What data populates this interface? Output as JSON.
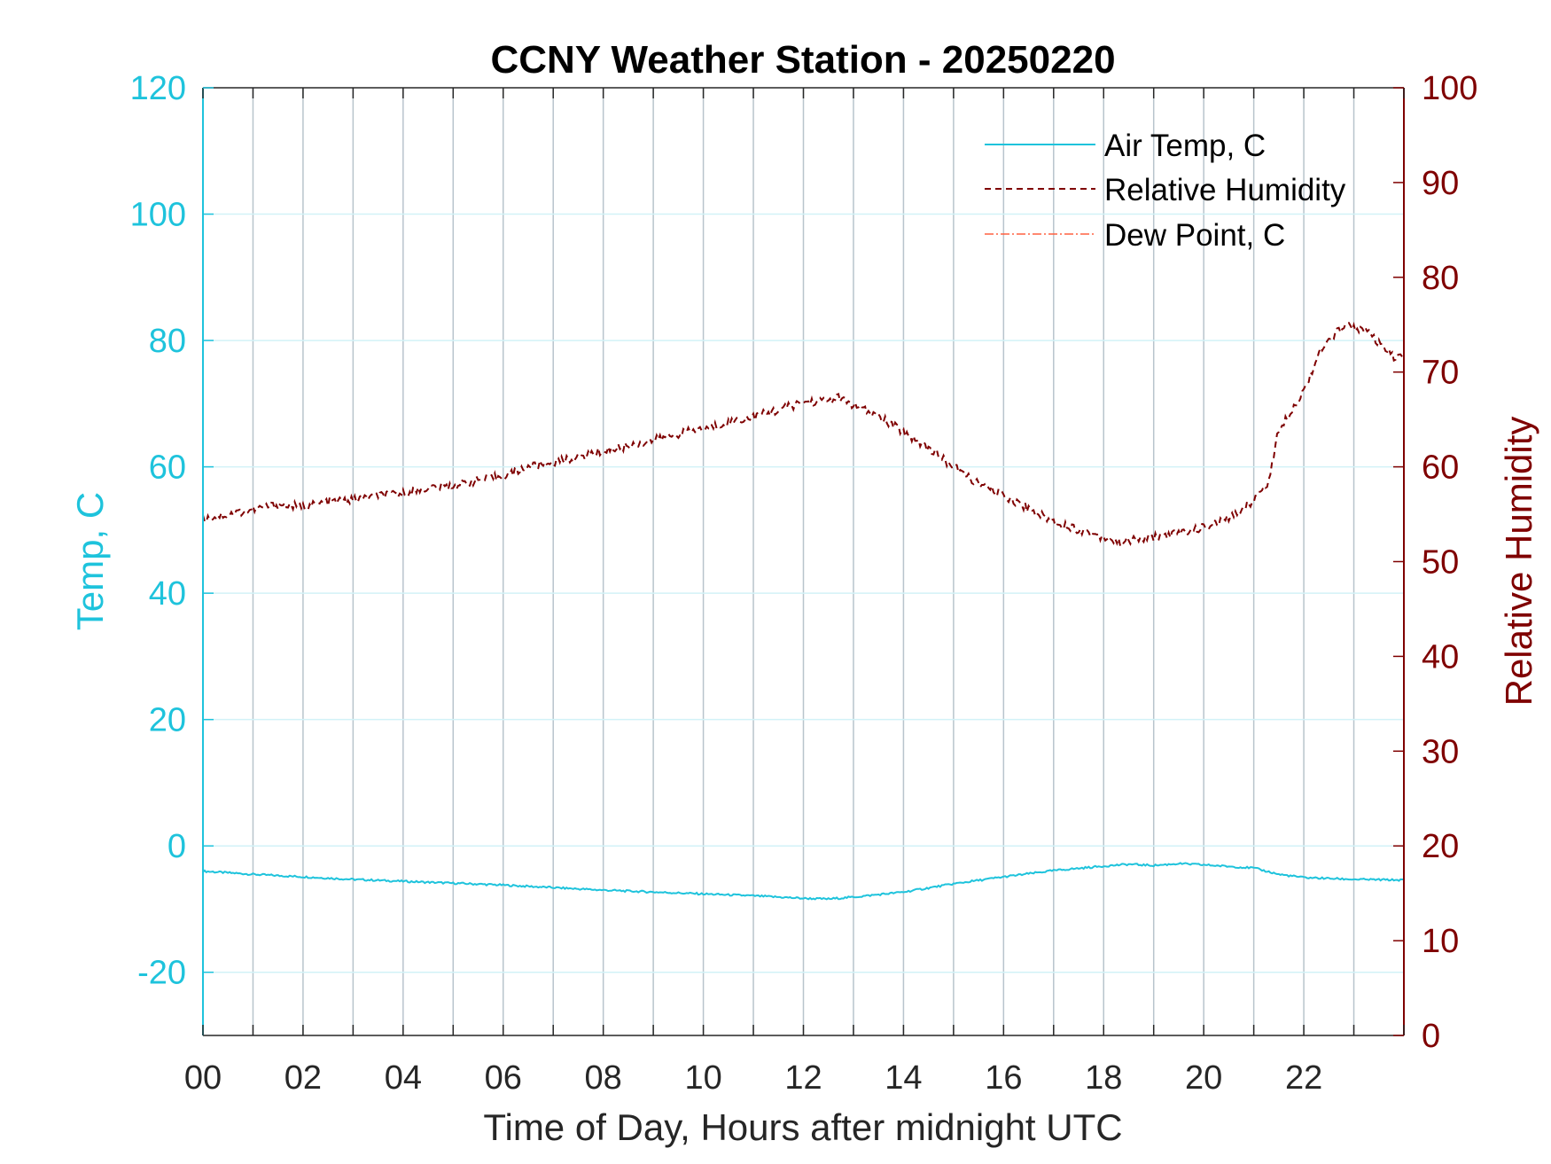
{
  "colors": {
    "temp": "#1ec3dc",
    "rh": "#7f0000",
    "dew": "#ff6040",
    "axis_dark": "#262626",
    "grid_x": "#b8c4cc",
    "grid_y": "#d2f2f7"
  },
  "chart_data": {
    "type": "line",
    "title": "CCNY Weather Station - 20250220",
    "xlabel": "Time of Day, Hours after midnight UTC",
    "ylabel_left": "Temp, C",
    "ylabel_right": "Relative Humidity",
    "xlim": [
      0,
      24
    ],
    "ylim_left": [
      -30,
      120
    ],
    "ylim_right": [
      0,
      100
    ],
    "x_ticks": [
      0,
      2,
      4,
      6,
      8,
      10,
      12,
      14,
      16,
      18,
      20,
      22
    ],
    "x_tick_labels": [
      "00",
      "02",
      "04",
      "06",
      "08",
      "10",
      "12",
      "14",
      "16",
      "18",
      "20",
      "22"
    ],
    "y_left_ticks": [
      -20,
      0,
      20,
      40,
      60,
      80,
      100,
      120
    ],
    "y_left_tick_labels": [
      "-20",
      "0",
      "20",
      "40",
      "60",
      "80",
      "100",
      "120"
    ],
    "y_right_ticks": [
      0,
      10,
      20,
      30,
      40,
      50,
      60,
      70,
      80,
      90,
      100
    ],
    "y_right_tick_labels": [
      "0",
      "10",
      "20",
      "30",
      "40",
      "50",
      "60",
      "70",
      "80",
      "90",
      "100"
    ],
    "grid": true,
    "legend_position": "top-right",
    "series": [
      {
        "name": "Air Temp, C",
        "axis": "left",
        "style": "solid",
        "x": [
          0,
          1,
          2,
          3,
          4,
          5,
          6,
          7,
          8,
          9,
          10,
          11,
          12,
          12.5,
          13,
          14,
          15,
          16,
          17,
          18,
          18.5,
          19,
          19.5,
          20,
          21,
          21.5,
          22,
          23,
          24
        ],
        "y": [
          -4,
          -4.5,
          -4.9,
          -5.3,
          -5.6,
          -5.9,
          -6.2,
          -6.6,
          -7,
          -7.3,
          -7.6,
          -7.9,
          -8.3,
          -8.4,
          -8.1,
          -7.3,
          -6,
          -4.9,
          -3.9,
          -3.2,
          -2.9,
          -3.1,
          -2.8,
          -3,
          -3.5,
          -4.5,
          -5,
          -5.3,
          -5.4
        ]
      },
      {
        "name": "Relative Humidity",
        "axis": "right",
        "style": "dashed",
        "x": [
          0,
          0.5,
          1,
          1.5,
          2,
          2.5,
          3,
          3.5,
          4,
          4.5,
          5,
          5.5,
          6,
          6.5,
          7,
          7.5,
          8,
          8.5,
          9,
          9.5,
          10,
          10.5,
          11,
          11.5,
          12,
          12.5,
          12.7,
          13,
          13.5,
          14,
          14.5,
          15,
          15.5,
          16,
          16.5,
          17,
          17.5,
          18,
          18.3,
          18.5,
          19,
          19.5,
          20,
          20.5,
          21,
          21.3,
          21.5,
          22,
          22.3,
          22.8,
          23.2,
          23.5,
          23.8,
          24
        ],
        "y": [
          54.5,
          55,
          55.5,
          56,
          55.8,
          56.3,
          56.5,
          57,
          57.2,
          57.8,
          58,
          58.6,
          59,
          60,
          60.5,
          61,
          61.7,
          62.2,
          62.8,
          63.5,
          64,
          64.7,
          65.3,
          66,
          66.8,
          67,
          67.3,
          66.5,
          65.3,
          63.7,
          62,
          60,
          58.2,
          57,
          55.6,
          54.2,
          53.4,
          52.6,
          52,
          52.2,
          52.6,
          53,
          53.6,
          54.5,
          56.5,
          58.5,
          64,
          68,
          72,
          75,
          74.5,
          73,
          71.5,
          72
        ]
      },
      {
        "name": "Dew Point, C",
        "axis": "left",
        "style": "dashdot",
        "x": [],
        "y": []
      }
    ]
  }
}
